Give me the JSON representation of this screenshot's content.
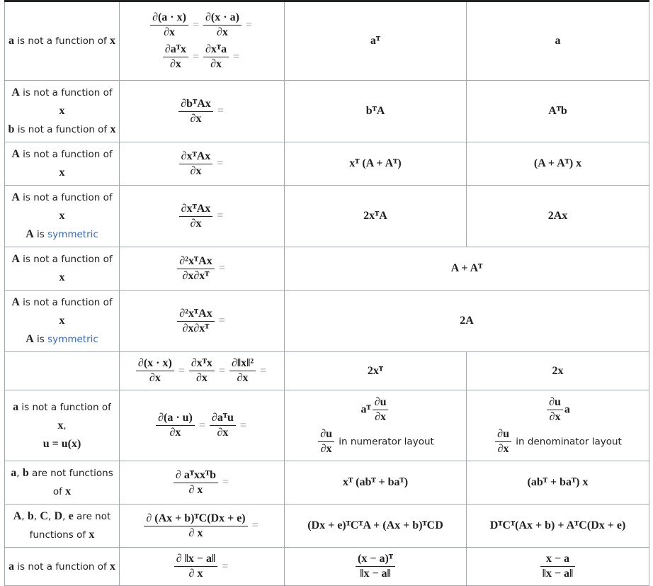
{
  "table": {
    "rows": [
      {
        "cells": [
          [
            [
              {
                "m": "a"
              },
              {
                "t": " is not a function of "
              },
              {
                "m": "x"
              }
            ]
          ],
          [
            [
              {
                "n": "∂(a · x)",
                "d": "∂x"
              },
              {
                "m": "="
              },
              {
                "n": "∂(x · a)",
                "d": "∂x"
              },
              {
                "m": "="
              }
            ],
            [
              {
                "n": "∂aᵀx",
                "d": "∂x"
              },
              {
                "m": "="
              },
              {
                "n": "∂xᵀa",
                "d": "∂x"
              },
              {
                "m": "="
              }
            ]
          ],
          [
            [
              {
                "m": "aᵀ"
              }
            ]
          ],
          [
            [
              {
                "m": "a"
              }
            ]
          ]
        ]
      },
      {
        "cells": [
          [
            [
              {
                "m": "A"
              },
              {
                "t": " is not a function of"
              }
            ],
            [
              {
                "m": "x"
              }
            ],
            [
              {
                "m": "b"
              },
              {
                "t": " is not a function of "
              },
              {
                "m": "x"
              }
            ]
          ],
          [
            [
              {
                "n": "∂bᵀAx",
                "d": "∂x"
              },
              {
                "m": "="
              }
            ]
          ],
          [
            [
              {
                "m": "bᵀA"
              }
            ]
          ],
          [
            [
              {
                "m": "Aᵀb"
              }
            ]
          ]
        ]
      },
      {
        "cells": [
          [
            [
              {
                "m": "A"
              },
              {
                "t": " is not a function of"
              }
            ],
            [
              {
                "m": "x"
              }
            ]
          ],
          [
            [
              {
                "n": "∂xᵀAx",
                "d": "∂x"
              },
              {
                "m": "="
              }
            ]
          ],
          [
            [
              {
                "m": "xᵀ (A + Aᵀ)"
              }
            ]
          ],
          [
            [
              {
                "m": "(A + Aᵀ) x"
              }
            ]
          ]
        ]
      },
      {
        "cells": [
          [
            [
              {
                "m": "A"
              },
              {
                "t": " is not a function of"
              }
            ],
            [
              {
                "m": "x"
              }
            ],
            [
              {
                "m": "A"
              },
              {
                "t": " is "
              },
              {
                "l": "symmetric"
              }
            ]
          ],
          [
            [
              {
                "n": "∂xᵀAx",
                "d": "∂x"
              },
              {
                "m": "="
              }
            ]
          ],
          [
            [
              {
                "m": "2xᵀA"
              }
            ]
          ],
          [
            [
              {
                "m": "2Ax"
              }
            ]
          ]
        ]
      },
      {
        "cells": [
          [
            [
              {
                "m": "A"
              },
              {
                "t": " is not a function of"
              }
            ],
            [
              {
                "m": "x"
              }
            ]
          ],
          [
            [
              {
                "n": "∂²xᵀAx",
                "d": "∂x∂xᵀ"
              },
              {
                "m": "="
              }
            ]
          ],
          [
            [
              {
                "m": "A + Aᵀ"
              }
            ]
          ]
        ]
      },
      {
        "cells": [
          [
            [
              {
                "m": "A"
              },
              {
                "t": " is not a function of"
              }
            ],
            [
              {
                "m": "x"
              }
            ],
            [
              {
                "m": "A"
              },
              {
                "t": " is "
              },
              {
                "l": "symmetric"
              }
            ]
          ],
          [
            [
              {
                "n": "∂²xᵀAx",
                "d": "∂x∂xᵀ"
              },
              {
                "m": "="
              }
            ]
          ],
          [
            [
              {
                "m": "2A"
              }
            ]
          ]
        ]
      },
      {
        "cells": [
          [],
          [
            [
              {
                "n": "∂(x · x)",
                "d": "∂x"
              },
              {
                "m": "="
              },
              {
                "n": "∂xᵀx",
                "d": "∂x"
              },
              {
                "m": "="
              },
              {
                "n": "∂‖x‖²",
                "d": "∂x"
              },
              {
                "m": "="
              }
            ]
          ],
          [
            [
              {
                "m": "2xᵀ"
              }
            ]
          ],
          [
            [
              {
                "m": "2x"
              }
            ]
          ]
        ]
      },
      {
        "cells": [
          [
            [
              {
                "m": "a"
              },
              {
                "t": " is not a function of"
              }
            ],
            [
              {
                "m": "x"
              },
              {
                "t": ","
              }
            ],
            [
              {
                "m": "u = u(x)"
              }
            ]
          ],
          [
            [
              {
                "n": "∂(a · u)",
                "d": "∂x"
              },
              {
                "m": "="
              },
              {
                "n": "∂aᵀu",
                "d": "∂x"
              },
              {
                "m": "="
              }
            ]
          ],
          [
            [
              {
                "m": "aᵀ"
              },
              {
                "n": "∂u",
                "d": "∂x"
              }
            ],
            [
              {
                "n": "∂u",
                "d": "∂x"
              },
              {
                "t": " in numerator layout"
              }
            ]
          ],
          [
            [
              {
                "n": "∂u",
                "d": "∂x"
              },
              {
                "m": "a"
              }
            ],
            [
              {
                "n": "∂u",
                "d": "∂x"
              },
              {
                "t": " in denominator layout"
              }
            ]
          ]
        ]
      },
      {
        "cells": [
          [
            [
              {
                "m": "a"
              },
              {
                "t": ", "
              },
              {
                "m": "b"
              },
              {
                "t": " are not functions"
              }
            ],
            [
              {
                "t": "of "
              },
              {
                "m": "x"
              }
            ]
          ],
          [
            [
              {
                "n": "∂ aᵀxxᵀb",
                "d": "∂ x"
              },
              {
                "m": "="
              }
            ]
          ],
          [
            [
              {
                "m": "xᵀ (abᵀ + baᵀ)"
              }
            ]
          ],
          [
            [
              {
                "m": "(abᵀ + baᵀ) x"
              }
            ]
          ]
        ]
      },
      {
        "cells": [
          [
            [
              {
                "m": "A"
              },
              {
                "t": ", "
              },
              {
                "m": "b"
              },
              {
                "t": ", "
              },
              {
                "m": "C"
              },
              {
                "t": ", "
              },
              {
                "m": "D"
              },
              {
                "t": ", "
              },
              {
                "m": "e"
              },
              {
                "t": " are not"
              }
            ],
            [
              {
                "t": "functions of "
              },
              {
                "m": "x"
              }
            ]
          ],
          [
            [
              {
                "n": "∂ (Ax + b)ᵀC(Dx + e)",
                "d": "∂ x"
              },
              {
                "m": "="
              }
            ]
          ],
          [
            [
              {
                "m": "(Dx + e)ᵀCᵀA + (Ax + b)ᵀCD"
              }
            ]
          ],
          [
            [
              {
                "m": "DᵀCᵀ(Ax + b) + AᵀC(Dx + e)"
              }
            ]
          ]
        ]
      },
      {
        "cells": [
          [
            [
              {
                "m": "a"
              },
              {
                "t": " is not a function of "
              },
              {
                "m": "x"
              }
            ]
          ],
          [
            [
              {
                "n": "∂ ‖x − a‖",
                "d": "∂ x"
              },
              {
                "m": "="
              }
            ]
          ],
          [
            [
              {
                "n": "(x − a)ᵀ",
                "d": "‖x − a‖"
              }
            ]
          ],
          [
            [
              {
                "n": "x − a",
                "d": "‖x − a‖"
              }
            ]
          ]
        ]
      }
    ]
  }
}
